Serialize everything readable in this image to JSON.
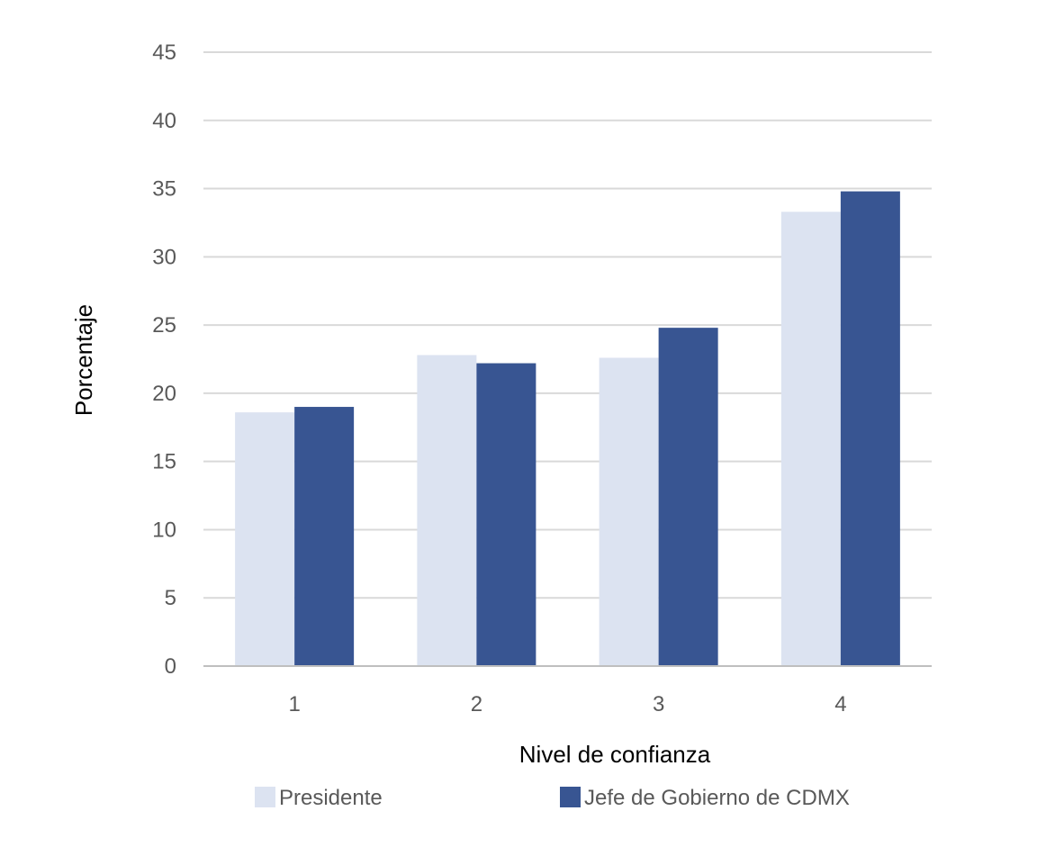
{
  "chart_data": {
    "type": "bar",
    "title": "",
    "xlabel": "Nivel de confianza",
    "ylabel": "Porcentaje",
    "categories": [
      "1",
      "2",
      "3",
      "4"
    ],
    "ylim": [
      0,
      45
    ],
    "yticks": [
      0,
      5,
      10,
      15,
      20,
      25,
      30,
      35,
      40,
      45
    ],
    "grid": true,
    "legend_position": "bottom",
    "series": [
      {
        "name": "Presidente",
        "values": [
          18.6,
          22.8,
          22.6,
          33.3
        ],
        "color": "#dce3f1"
      },
      {
        "name": "Jefe de Gobierno de CDMX",
        "values": [
          19.0,
          22.2,
          24.8,
          34.8
        ],
        "color": "#385592"
      }
    ],
    "colors": {
      "grid": "#d9d9d9",
      "axis": "#bfbfbf"
    }
  }
}
